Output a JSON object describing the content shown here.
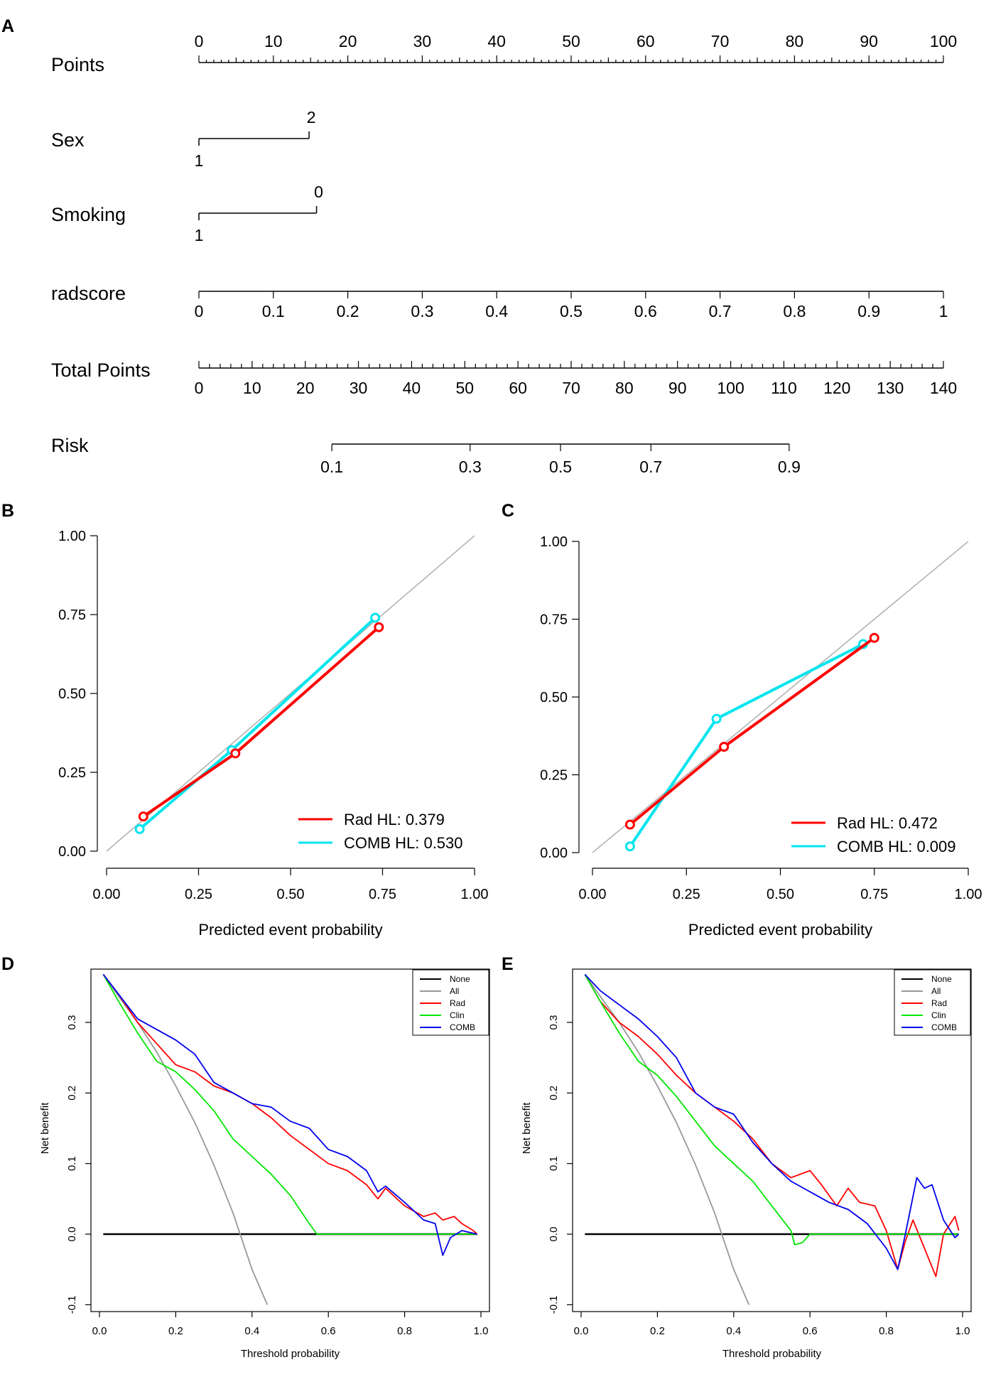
{
  "colors": {
    "rad": "#ff0000",
    "comb": "#00e5ee",
    "diag": "#b3b3b3",
    "none": "#000000",
    "all": "#999999",
    "clin": "#00e600",
    "comb_dca": "#0000ee"
  },
  "chart_data": [
    {
      "panel": "A",
      "type": "nomogram",
      "rows": [
        {
          "name": "Points",
          "kind": "points",
          "labels": [
            "0",
            "10",
            "20",
            "30",
            "40",
            "50",
            "60",
            "70",
            "80",
            "90",
            "100"
          ]
        },
        {
          "name": "Sex",
          "kind": "categorical",
          "levels": [
            {
              "label": "1",
              "points": 0
            },
            {
              "label": "2",
              "points": 14.8
            }
          ]
        },
        {
          "name": "Smoking",
          "kind": "categorical",
          "levels": [
            {
              "label": "1",
              "points": 0
            },
            {
              "label": "0",
              "points": 15.8
            }
          ]
        },
        {
          "name": "radscore",
          "kind": "continuous",
          "labels": [
            "0",
            "0.1",
            "0.2",
            "0.3",
            "0.4",
            "0.5",
            "0.6",
            "0.7",
            "0.8",
            "0.9",
            "1"
          ],
          "points_per_unit": 100
        },
        {
          "name": "Total Points",
          "kind": "total",
          "labels": [
            "0",
            "10",
            "20",
            "30",
            "40",
            "50",
            "60",
            "70",
            "80",
            "90",
            "100",
            "110",
            "120",
            "130",
            "140"
          ],
          "max": 140
        },
        {
          "name": "Risk",
          "kind": "risk",
          "ticks": [
            {
              "label": "0.1",
              "total": 25
            },
            {
              "label": "0.3",
              "total": 51
            },
            {
              "label": "0.5",
              "total": 68
            },
            {
              "label": "0.7",
              "total": 85
            },
            {
              "label": "0.9",
              "total": 111
            }
          ]
        }
      ]
    },
    {
      "panel": "B",
      "type": "line",
      "xlabel": "Predicted event probability",
      "ylabel": "",
      "xlim": [
        0,
        1
      ],
      "ylim": [
        0,
        1
      ],
      "ticks": [
        "0.00",
        "0.25",
        "0.50",
        "0.75",
        "1.00"
      ],
      "series": [
        {
          "name": "Rad",
          "x": [
            0.1,
            0.35,
            0.74
          ],
          "y": [
            0.11,
            0.31,
            0.71
          ]
        },
        {
          "name": "COMB",
          "x": [
            0.09,
            0.34,
            0.73
          ],
          "y": [
            0.07,
            0.32,
            0.74
          ]
        }
      ],
      "legend": [
        "Rad HL: 0.379",
        "COMB HL: 0.530"
      ]
    },
    {
      "panel": "C",
      "type": "line",
      "xlabel": "Predicted event probability",
      "ylabel": "",
      "xlim": [
        0,
        1
      ],
      "ylim": [
        0,
        1
      ],
      "ticks": [
        "0.00",
        "0.25",
        "0.50",
        "0.75",
        "1.00"
      ],
      "series": [
        {
          "name": "Rad",
          "x": [
            0.1,
            0.35,
            0.75
          ],
          "y": [
            0.09,
            0.34,
            0.69
          ]
        },
        {
          "name": "COMB",
          "x": [
            0.1,
            0.33,
            0.72
          ],
          "y": [
            0.02,
            0.43,
            0.67
          ]
        }
      ],
      "legend": [
        "Rad HL: 0.472",
        "COMB HL: 0.009"
      ]
    },
    {
      "panel": "D",
      "type": "line",
      "xlabel": "Threshold probability",
      "ylabel": "Net benefit",
      "xlim": [
        0,
        1
      ],
      "ylim": [
        -0.1,
        0.37
      ],
      "xticks": [
        "0.0",
        "0.2",
        "0.4",
        "0.6",
        "0.8",
        "1.0"
      ],
      "yticks": [
        "-0.1",
        "0.0",
        "0.1",
        "0.2",
        "0.3"
      ],
      "legend": [
        "None",
        "All",
        "Rad",
        "Clin",
        "COMB"
      ],
      "series": [
        {
          "name": "None",
          "x": [
            0.01,
            0.99
          ],
          "y": [
            0,
            0
          ]
        },
        {
          "name": "All",
          "x": [
            0.01,
            0.05,
            0.1,
            0.15,
            0.2,
            0.25,
            0.3,
            0.35,
            0.4,
            0.44
          ],
          "y": [
            0.368,
            0.337,
            0.3,
            0.258,
            0.21,
            0.158,
            0.098,
            0.03,
            -0.05,
            -0.1
          ]
        },
        {
          "name": "Rad",
          "x": [
            0.01,
            0.05,
            0.1,
            0.15,
            0.2,
            0.25,
            0.3,
            0.35,
            0.4,
            0.45,
            0.5,
            0.55,
            0.6,
            0.65,
            0.7,
            0.73,
            0.75,
            0.8,
            0.85,
            0.88,
            0.9,
            0.93,
            0.95,
            0.98,
            0.99
          ],
          "y": [
            0.368,
            0.34,
            0.3,
            0.27,
            0.24,
            0.23,
            0.21,
            0.2,
            0.185,
            0.165,
            0.14,
            0.12,
            0.1,
            0.09,
            0.07,
            0.05,
            0.065,
            0.04,
            0.025,
            0.03,
            0.02,
            0.025,
            0.015,
            0.005,
            0
          ]
        },
        {
          "name": "Clin",
          "x": [
            0.01,
            0.05,
            0.1,
            0.15,
            0.2,
            0.25,
            0.3,
            0.35,
            0.4,
            0.45,
            0.5,
            0.55,
            0.57,
            0.6,
            0.99
          ],
          "y": [
            0.368,
            0.33,
            0.285,
            0.245,
            0.23,
            0.205,
            0.175,
            0.135,
            0.11,
            0.085,
            0.055,
            0.015,
            0,
            0,
            0
          ]
        },
        {
          "name": "COMB",
          "x": [
            0.01,
            0.05,
            0.1,
            0.15,
            0.2,
            0.25,
            0.3,
            0.35,
            0.4,
            0.45,
            0.5,
            0.55,
            0.6,
            0.65,
            0.7,
            0.73,
            0.75,
            0.8,
            0.85,
            0.88,
            0.9,
            0.92,
            0.95,
            0.99
          ],
          "y": [
            0.368,
            0.34,
            0.305,
            0.29,
            0.275,
            0.255,
            0.215,
            0.2,
            0.185,
            0.18,
            0.16,
            0.15,
            0.12,
            0.11,
            0.09,
            0.06,
            0.068,
            0.045,
            0.02,
            0.015,
            -0.03,
            -0.005,
            0.005,
            0
          ]
        }
      ]
    },
    {
      "panel": "E",
      "type": "line",
      "xlabel": "Threshold probability",
      "ylabel": "Net benefit",
      "xlim": [
        0,
        1
      ],
      "ylim": [
        -0.1,
        0.37
      ],
      "xticks": [
        "0.0",
        "0.2",
        "0.4",
        "0.6",
        "0.8",
        "1.0"
      ],
      "yticks": [
        "-0.1",
        "0.0",
        "0.1",
        "0.2",
        "0.3"
      ],
      "legend": [
        "None",
        "All",
        "Rad",
        "Clin",
        "COMB"
      ],
      "series": [
        {
          "name": "None",
          "x": [
            0.01,
            0.99
          ],
          "y": [
            0,
            0
          ]
        },
        {
          "name": "All",
          "x": [
            0.01,
            0.05,
            0.1,
            0.15,
            0.2,
            0.25,
            0.3,
            0.35,
            0.4,
            0.44
          ],
          "y": [
            0.368,
            0.337,
            0.3,
            0.258,
            0.21,
            0.158,
            0.098,
            0.03,
            -0.05,
            -0.1
          ]
        },
        {
          "name": "Rad",
          "x": [
            0.01,
            0.05,
            0.1,
            0.15,
            0.2,
            0.25,
            0.3,
            0.35,
            0.4,
            0.45,
            0.5,
            0.55,
            0.6,
            0.63,
            0.67,
            0.7,
            0.73,
            0.77,
            0.8,
            0.83,
            0.85,
            0.87,
            0.9,
            0.93,
            0.95,
            0.98,
            0.99
          ],
          "y": [
            0.368,
            0.33,
            0.3,
            0.28,
            0.255,
            0.225,
            0.2,
            0.18,
            0.16,
            0.135,
            0.1,
            0.08,
            0.09,
            0.07,
            0.04,
            0.065,
            0.045,
            0.04,
            0.005,
            -0.05,
            -0.01,
            0.02,
            -0.02,
            -0.06,
            0.0,
            0.025,
            0.005
          ]
        },
        {
          "name": "Clin",
          "x": [
            0.01,
            0.05,
            0.1,
            0.15,
            0.2,
            0.25,
            0.3,
            0.35,
            0.4,
            0.45,
            0.5,
            0.55,
            0.56,
            0.58,
            0.6,
            0.99
          ],
          "y": [
            0.368,
            0.33,
            0.285,
            0.245,
            0.225,
            0.195,
            0.16,
            0.125,
            0.1,
            0.075,
            0.04,
            0.005,
            -0.015,
            -0.012,
            0,
            0
          ]
        },
        {
          "name": "COMB",
          "x": [
            0.01,
            0.05,
            0.1,
            0.15,
            0.2,
            0.25,
            0.3,
            0.35,
            0.4,
            0.45,
            0.5,
            0.55,
            0.6,
            0.65,
            0.7,
            0.75,
            0.8,
            0.83,
            0.85,
            0.88,
            0.9,
            0.92,
            0.95,
            0.98,
            0.99
          ],
          "y": [
            0.368,
            0.345,
            0.325,
            0.305,
            0.28,
            0.25,
            0.2,
            0.18,
            0.17,
            0.13,
            0.1,
            0.075,
            0.06,
            0.045,
            0.035,
            0.015,
            -0.02,
            -0.05,
            0.0,
            0.08,
            0.065,
            0.07,
            0.02,
            -0.005,
            0
          ]
        }
      ]
    }
  ]
}
